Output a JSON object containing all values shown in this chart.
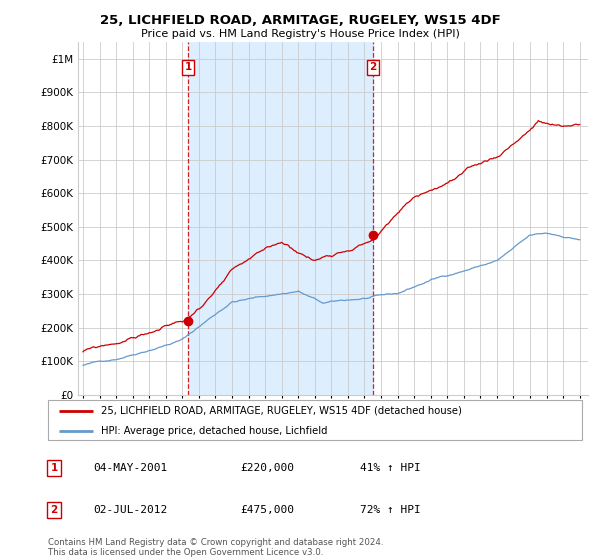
{
  "title": "25, LICHFIELD ROAD, ARMITAGE, RUGELEY, WS15 4DF",
  "subtitle": "Price paid vs. HM Land Registry's House Price Index (HPI)",
  "ytick_values": [
    0,
    100000,
    200000,
    300000,
    400000,
    500000,
    600000,
    700000,
    800000,
    900000,
    1000000
  ],
  "ylim": [
    0,
    1050000
  ],
  "xlim_start": 1994.7,
  "xlim_end": 2025.5,
  "sale1_x": 2001.34,
  "sale1_y": 220000,
  "sale2_x": 2012.5,
  "sale2_y": 475000,
  "sale1_label": "1",
  "sale2_label": "2",
  "legend_line1": "25, LICHFIELD ROAD, ARMITAGE, RUGELEY, WS15 4DF (detached house)",
  "legend_line2": "HPI: Average price, detached house, Lichfield",
  "annotation1_num": "1",
  "annotation1_date": "04-MAY-2001",
  "annotation1_price": "£220,000",
  "annotation1_hpi": "41% ↑ HPI",
  "annotation2_num": "2",
  "annotation2_date": "02-JUL-2012",
  "annotation2_price": "£475,000",
  "annotation2_hpi": "72% ↑ HPI",
  "footer": "Contains HM Land Registry data © Crown copyright and database right 2024.\nThis data is licensed under the Open Government Licence v3.0.",
  "sale_color": "#cc0000",
  "hpi_color": "#6699cc",
  "fill_color": "#ddeeff",
  "background_color": "#ffffff",
  "grid_color": "#cccccc"
}
